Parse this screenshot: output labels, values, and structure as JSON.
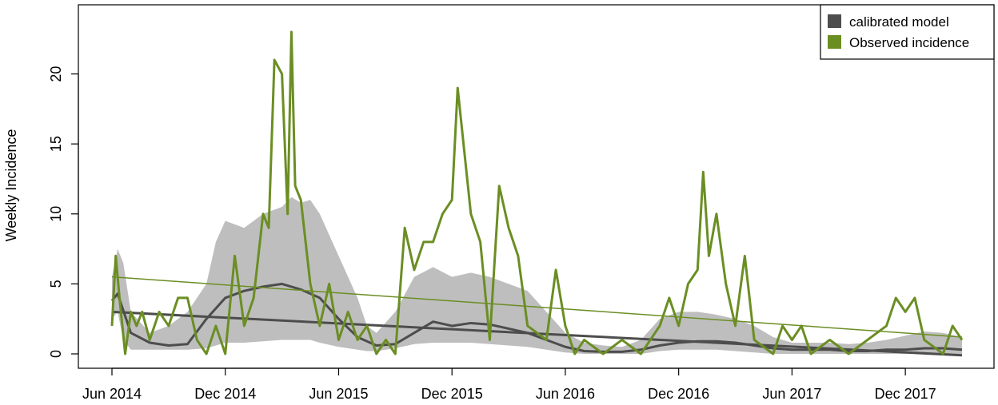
{
  "chart_data": {
    "type": "line",
    "ylabel": "Weekly Incidence",
    "xlabel": "",
    "ylim": [
      0,
      23
    ],
    "y_ticks": [
      0,
      5,
      10,
      15,
      20
    ],
    "x_ticks": [
      {
        "date": "2014-06",
        "label": "Jun 2014"
      },
      {
        "date": "2014-12",
        "label": "Dec 2014"
      },
      {
        "date": "2015-06",
        "label": "Jun 2015"
      },
      {
        "date": "2015-12",
        "label": "Dec 2015"
      },
      {
        "date": "2016-06",
        "label": "Jun 2016"
      },
      {
        "date": "2016-12",
        "label": "Dec 2016"
      },
      {
        "date": "2017-06",
        "label": "Jun 2017"
      },
      {
        "date": "2017-12",
        "label": "Dec 2017"
      }
    ],
    "legend": {
      "position": "top-right",
      "entries": [
        {
          "label": "calibrated model",
          "color": "#4d4d4d"
        },
        {
          "label": "Observed incidence",
          "color": "#6b8e23"
        }
      ]
    },
    "band": {
      "color": "#bebebe",
      "x": [
        "2014-06",
        "2014-06.3",
        "2014-06.6",
        "2014-07",
        "2014-08",
        "2014-09",
        "2014-10",
        "2014-11",
        "2014-11.5",
        "2014-12",
        "2015-01",
        "2015-02",
        "2015-03",
        "2015-03.5",
        "2015-04",
        "2015-04.5",
        "2015-05",
        "2015-06",
        "2015-07",
        "2015-07.5",
        "2015-08",
        "2015-09",
        "2015-10",
        "2015-11",
        "2015-12",
        "2016-01",
        "2016-02",
        "2016-03",
        "2016-04",
        "2016-05",
        "2016-06",
        "2016-07",
        "2016-08",
        "2016-09",
        "2016-10",
        "2016-11",
        "2016-12",
        "2017-01",
        "2017-02",
        "2017-03",
        "2017-04",
        "2017-05",
        "2017-06",
        "2017-07",
        "2017-08",
        "2017-09",
        "2017-10",
        "2017-11",
        "2017-12",
        "2018-01",
        "2018-02",
        "2018-03"
      ],
      "upper": [
        5.5,
        7.5,
        6.5,
        3.0,
        1.5,
        2.0,
        3.0,
        5.0,
        8.0,
        9.5,
        9.0,
        10.0,
        10.5,
        11.2,
        10.8,
        11.0,
        10.0,
        7.0,
        4.0,
        2.0,
        1.5,
        3.0,
        5.5,
        6.2,
        5.5,
        5.8,
        5.5,
        5.0,
        4.5,
        3.0,
        1.5,
        0.8,
        0.6,
        0.5,
        1.0,
        2.5,
        3.0,
        3.0,
        2.8,
        2.5,
        2.0,
        1.2,
        0.8,
        0.8,
        0.8,
        0.7,
        0.8,
        1.0,
        1.3,
        1.6,
        1.5,
        1.2
      ],
      "lower": [
        2.5,
        3.0,
        1.0,
        0.3,
        0.3,
        0.3,
        0.3,
        0.4,
        0.6,
        0.8,
        0.8,
        0.9,
        1.0,
        1.0,
        1.0,
        1.0,
        0.8,
        0.5,
        0.3,
        0.2,
        0.2,
        0.4,
        0.7,
        0.8,
        0.8,
        0.8,
        0.7,
        0.6,
        0.5,
        0.3,
        0.1,
        0.0,
        0.0,
        0.0,
        0.0,
        0.2,
        0.3,
        0.3,
        0.3,
        0.2,
        0.1,
        0.0,
        0.0,
        0.0,
        0.0,
        0.0,
        0.0,
        0.0,
        0.0,
        0.0,
        0.0,
        0.0
      ]
    },
    "series": [
      {
        "name": "calibrated model",
        "color": "#4d4d4d",
        "width": 3,
        "x": [
          "2014-06",
          "2014-06.3",
          "2014-07",
          "2014-08",
          "2014-09",
          "2014-10",
          "2014-11",
          "2014-12",
          "2015-01",
          "2015-02",
          "2015-03",
          "2015-04",
          "2015-05",
          "2015-06",
          "2015-07",
          "2015-08",
          "2015-09",
          "2015-10",
          "2015-11",
          "2015-12",
          "2016-01",
          "2016-02",
          "2016-03",
          "2016-04",
          "2016-05",
          "2016-06",
          "2016-07",
          "2016-08",
          "2016-09",
          "2016-10",
          "2016-11",
          "2016-12",
          "2017-01",
          "2017-02",
          "2017-03",
          "2017-04",
          "2017-05",
          "2017-06",
          "2017-07",
          "2017-08",
          "2017-09",
          "2017-10",
          "2017-11",
          "2017-12",
          "2018-01",
          "2018-02",
          "2018-03"
        ],
        "y": [
          3.8,
          4.3,
          1.5,
          0.8,
          0.6,
          0.7,
          2.5,
          4.0,
          4.5,
          4.8,
          5.0,
          4.6,
          4.0,
          2.5,
          1.2,
          0.6,
          0.7,
          1.5,
          2.3,
          2.0,
          2.2,
          2.1,
          1.8,
          1.5,
          1.0,
          0.5,
          0.2,
          0.15,
          0.15,
          0.3,
          0.6,
          0.8,
          0.9,
          0.9,
          0.8,
          0.6,
          0.4,
          0.3,
          0.3,
          0.3,
          0.2,
          0.2,
          0.3,
          0.3,
          0.4,
          0.4,
          0.3
        ]
      },
      {
        "name": "calibrated model trend",
        "color": "#4d4d4d",
        "width": 3,
        "x": [
          "2014-06",
          "2018-03"
        ],
        "y": [
          3.0,
          -0.1
        ]
      },
      {
        "name": "Observed incidence",
        "color": "#6b8e23",
        "width": 3,
        "x": [
          "2014-06",
          "2014-06.2",
          "2014-06.4",
          "2014-06.7",
          "2014-07",
          "2014-07.3",
          "2014-07.6",
          "2014-08",
          "2014-08.5",
          "2014-09",
          "2014-09.5",
          "2014-10",
          "2014-10.5",
          "2014-11",
          "2014-11.5",
          "2014-12",
          "2014-12.5",
          "2015-01",
          "2015-01.5",
          "2015-02",
          "2015-02.3",
          "2015-02.6",
          "2015-03",
          "2015-03.3",
          "2015-03.5",
          "2015-03.7",
          "2015-04",
          "2015-04.5",
          "2015-05",
          "2015-05.5",
          "2015-06",
          "2015-06.5",
          "2015-07",
          "2015-07.5",
          "2015-08",
          "2015-08.5",
          "2015-09",
          "2015-09.5",
          "2015-10",
          "2015-10.5",
          "2015-11",
          "2015-11.5",
          "2015-12",
          "2015-12.3",
          "2016-01",
          "2016-01.5",
          "2016-02",
          "2016-02.5",
          "2016-03",
          "2016-03.5",
          "2016-04",
          "2016-05",
          "2016-05.5",
          "2016-06",
          "2016-06.5",
          "2016-07",
          "2016-08",
          "2016-09",
          "2016-10",
          "2016-11",
          "2016-11.5",
          "2016-12",
          "2016-12.5",
          "2017-01",
          "2017-01.3",
          "2017-01.6",
          "2017-02",
          "2017-02.5",
          "2017-03",
          "2017-03.5",
          "2017-04",
          "2017-05",
          "2017-05.5",
          "2017-06",
          "2017-06.5",
          "2017-07",
          "2017-08",
          "2017-09",
          "2017-10",
          "2017-11",
          "2017-11.5",
          "2017-12",
          "2017-12.5",
          "2018-01",
          "2018-02",
          "2018-02.5",
          "2018-03"
        ],
        "y": [
          2.0,
          7.0,
          4.0,
          0.0,
          3.0,
          2.0,
          3.0,
          1.0,
          3.0,
          2.0,
          4.0,
          4.0,
          1.0,
          0.0,
          2.0,
          0.0,
          7.0,
          2.0,
          4.0,
          10.0,
          9.0,
          21.0,
          20.0,
          10.0,
          23.0,
          12.0,
          11.0,
          5.0,
          2.0,
          5.0,
          1.0,
          3.0,
          1.0,
          2.0,
          0.0,
          1.0,
          0.0,
          9.0,
          6.0,
          8.0,
          8.0,
          10.0,
          11.0,
          19.0,
          10.0,
          8.0,
          1.0,
          12.0,
          9.0,
          7.0,
          2.0,
          1.0,
          6.0,
          2.0,
          0.0,
          1.0,
          0.0,
          1.0,
          0.0,
          2.0,
          4.0,
          2.0,
          5.0,
          6.0,
          13.0,
          7.0,
          10.0,
          5.0,
          2.0,
          7.0,
          1.0,
          0.0,
          2.0,
          1.0,
          2.0,
          0.0,
          1.0,
          0.0,
          1.0,
          2.0,
          4.0,
          3.0,
          4.0,
          1.0,
          0.0,
          2.0,
          1.0
        ]
      },
      {
        "name": "Observed incidence trend",
        "color": "#6b8e23",
        "width": 1.5,
        "x": [
          "2014-06",
          "2018-03"
        ],
        "y": [
          5.5,
          1.2
        ]
      }
    ]
  }
}
